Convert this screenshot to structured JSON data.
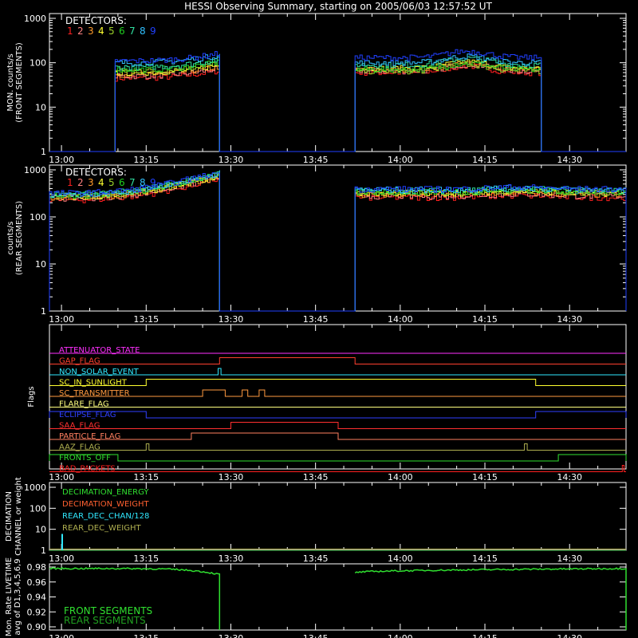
{
  "title": "HESSI Observing Summary, starting on 2005/06/03 12:57:52 UT",
  "colors": {
    "background": "#000000",
    "axes": "#ffffff",
    "detectors": [
      "#ff2020",
      "#ff8080",
      "#ff9a2a",
      "#ffff30",
      "#9ad02a",
      "#20d020",
      "#30e0a0",
      "#30c0ff",
      "#2040ff"
    ]
  },
  "time_ticks": [
    "13:00",
    "13:15",
    "13:30",
    "13:45",
    "14:00",
    "14:15",
    "14:30"
  ],
  "chart_data": [
    {
      "type": "line",
      "name": "front",
      "ylabel": "MON. counts/s",
      "ylabel2": "(FRONT SEGMENTS)",
      "yscale": "log",
      "ylim": [
        1,
        1000
      ],
      "yticks": [
        "1",
        "10",
        "100",
        "1000"
      ],
      "legend_title": "DETECTORS:",
      "legend_items": [
        "1",
        "2",
        "3",
        "4",
        "5",
        "6",
        "7",
        "8",
        "9"
      ],
      "xlim": [
        "12:57:52",
        "14:40:00"
      ],
      "segments": [
        {
          "start": "13:09:30",
          "end": "13:28:00",
          "levels": [
            45,
            50,
            55,
            60,
            65,
            70,
            80,
            100,
            110
          ],
          "ramp": 1.5,
          "hump": 1.0
        },
        {
          "start": "13:52:00",
          "end": "14:25:00",
          "levels": [
            60,
            65,
            70,
            75,
            65,
            70,
            90,
            100,
            130
          ],
          "ramp": 1.0,
          "hump": 1.4
        }
      ]
    },
    {
      "type": "line",
      "name": "rear",
      "ylabel": "counts/s",
      "ylabel2": "(REAR SEGMENTS)",
      "yscale": "log",
      "ylim": [
        1,
        1000
      ],
      "yticks": [
        "1",
        "10",
        "100",
        "1000"
      ],
      "legend_title": "DETECTORS:",
      "legend_items": [
        "1",
        "2",
        "3",
        "4",
        "5",
        "6",
        "7",
        "8",
        "9"
      ],
      "xlim": [
        "12:57:52",
        "14:40:00"
      ],
      "segments": [
        {
          "start": "12:57:52",
          "end": "13:28:00",
          "levels": [
            230,
            250,
            260,
            270,
            280,
            290,
            300,
            310,
            320
          ],
          "ramp": 2.8,
          "hump": 1.0
        },
        {
          "start": "13:52:00",
          "end": "14:40:00",
          "levels": [
            260,
            280,
            300,
            320,
            330,
            340,
            360,
            380,
            390
          ],
          "ramp": 1.0,
          "hump": 1.1
        }
      ]
    },
    {
      "type": "step",
      "name": "flags",
      "ylabel": "Flags",
      "flags": [
        {
          "label": "ATTENUATOR_STATE",
          "color": "#ff30ff",
          "highs": []
        },
        {
          "label": "GAP_FLAG",
          "color": "#ff4030",
          "highs": [
            [
              "13:28:00",
              "13:52:00"
            ]
          ]
        },
        {
          "label": "NON_SOLAR_EVENT",
          "color": "#30e8ff",
          "highs": [
            [
              "13:27:45",
              "13:28:15"
            ]
          ]
        },
        {
          "label": "SC_IN_SUNLIGHT",
          "color": "#ffff30",
          "highs": [
            [
              "13:15:00",
              "14:24:00"
            ]
          ]
        },
        {
          "label": "SC_TRANSMITTER",
          "color": "#ff9a40",
          "highs": [
            [
              "13:25:00",
              "13:29:00"
            ],
            [
              "13:32:00",
              "13:33:00"
            ],
            [
              "13:35:00",
              "13:36:00"
            ]
          ]
        },
        {
          "label": "FLARE_FLAG",
          "color": "#ffff80",
          "highs": []
        },
        {
          "label": "ECLIPSE_FLAG",
          "color": "#3040ff",
          "highs": [
            [
              "12:57:52",
              "13:15:00"
            ],
            [
              "14:24:00",
              "14:40:00"
            ]
          ]
        },
        {
          "label": "SAA_FLAG",
          "color": "#ff3030",
          "highs": [
            [
              "13:30:00",
              "13:49:00"
            ]
          ]
        },
        {
          "label": "PARTICLE_FLAG",
          "color": "#ff8060",
          "highs": [
            [
              "13:23:00",
              "13:49:00"
            ]
          ]
        },
        {
          "label": "AAZ_FLAG",
          "color": "#b0b050",
          "highs": [
            [
              "13:15:00",
              "13:15:30"
            ],
            [
              "14:22:00",
              "14:22:30"
            ]
          ]
        },
        {
          "label": "FRONTS_OFF",
          "color": "#30e030",
          "highs": [
            [
              "12:57:52",
              "13:10:00"
            ],
            [
              "14:28:00",
              "14:40:00"
            ]
          ]
        },
        {
          "label": "BAD_PACKETS",
          "color": "#ff2020",
          "highs": [
            [
              "14:39:20",
              "14:39:40"
            ]
          ]
        }
      ]
    },
    {
      "type": "line",
      "name": "decimation",
      "ylabel": "DECIMATION",
      "ylabel2": "CHANNEL or weight",
      "yscale": "log",
      "ylim": [
        1,
        1000
      ],
      "yticks": [
        "1",
        "10",
        "100",
        "1000"
      ],
      "series": [
        {
          "name": "DECIMATION_ENERGY",
          "color": "#30e030"
        },
        {
          "name": "DECIMATION_WEIGHT",
          "color": "#ff6030"
        },
        {
          "name": "REAR_DEC_CHAN/128",
          "color": "#30e8ff"
        },
        {
          "name": "REAR_DEC_WEIGHT",
          "color": "#b0b050"
        }
      ]
    },
    {
      "type": "line",
      "name": "livetime",
      "ylabel": "Mon. Rate LIVETIME",
      "ylabel2": "avg of D1,3,4,5,6,9",
      "ylim": [
        0.9,
        0.98
      ],
      "yticks": [
        "0.90",
        "0.92",
        "0.94",
        "0.96",
        "0.98"
      ],
      "series": [
        {
          "name": "FRONT SEGMENTS",
          "color": "#30e030",
          "segments": [
            {
              "start": "12:57:52",
              "end": "13:28:00",
              "level": 0.978,
              "end_level": 0.97
            },
            {
              "start": "13:52:00",
              "end": "14:40:00",
              "level": 0.972,
              "end_level": 0.978
            }
          ]
        },
        {
          "name": "REAR SEGMENTS",
          "color": "#20a020",
          "segments": []
        }
      ]
    }
  ]
}
